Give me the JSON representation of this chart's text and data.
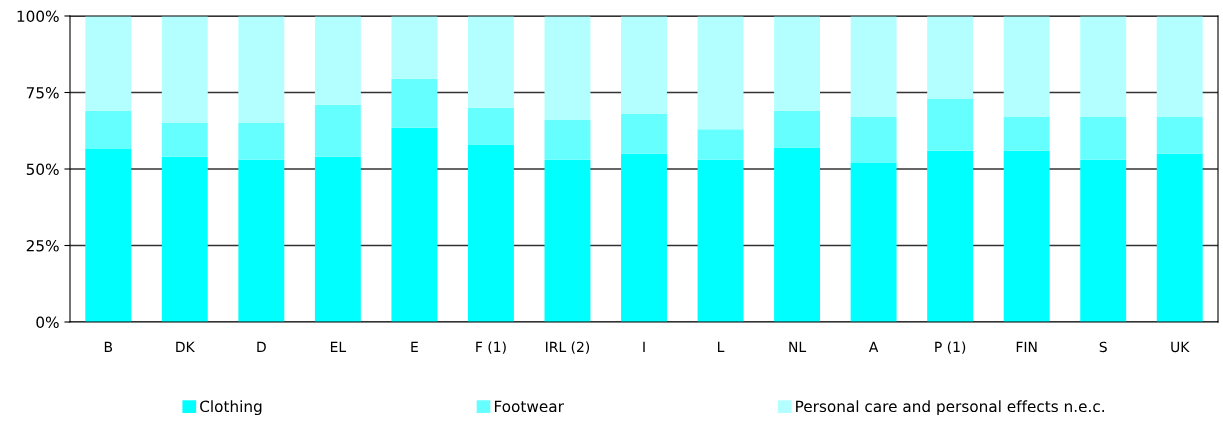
{
  "chart_data": {
    "type": "bar",
    "stacked": true,
    "categories": [
      "B",
      "DK",
      "D",
      "EL",
      "E",
      "F (1)",
      "IRL (2)",
      "I",
      "L",
      "NL",
      "A",
      "P (1)",
      "FIN",
      "S",
      "UK"
    ],
    "series": [
      {
        "name": "Clothing",
        "color": "#00ffff",
        "values": [
          56.5,
          54,
          53,
          54,
          63.5,
          58,
          53,
          55,
          53,
          57,
          52,
          56,
          56,
          53,
          55
        ]
      },
      {
        "name": "Footwear",
        "color": "#66ffff",
        "values": [
          12.5,
          11,
          12,
          17,
          16,
          12,
          13,
          13,
          10,
          12,
          15,
          17,
          11,
          14,
          12
        ]
      },
      {
        "name": "Personal care and personal effects n.e.c.",
        "color": "#b3ffff",
        "values": [
          31,
          35,
          35,
          29,
          20.5,
          30,
          34,
          32,
          37,
          31,
          33,
          27,
          33,
          33,
          33
        ]
      }
    ],
    "ylim": [
      0,
      100
    ],
    "yticks": [
      {
        "value": 0,
        "label": "0%"
      },
      {
        "value": 25,
        "label": "25%"
      },
      {
        "value": 50,
        "label": "50%"
      },
      {
        "value": 75,
        "label": "75%"
      },
      {
        "value": 100,
        "label": "100%"
      }
    ],
    "grid": "y",
    "legend": "bottom"
  }
}
